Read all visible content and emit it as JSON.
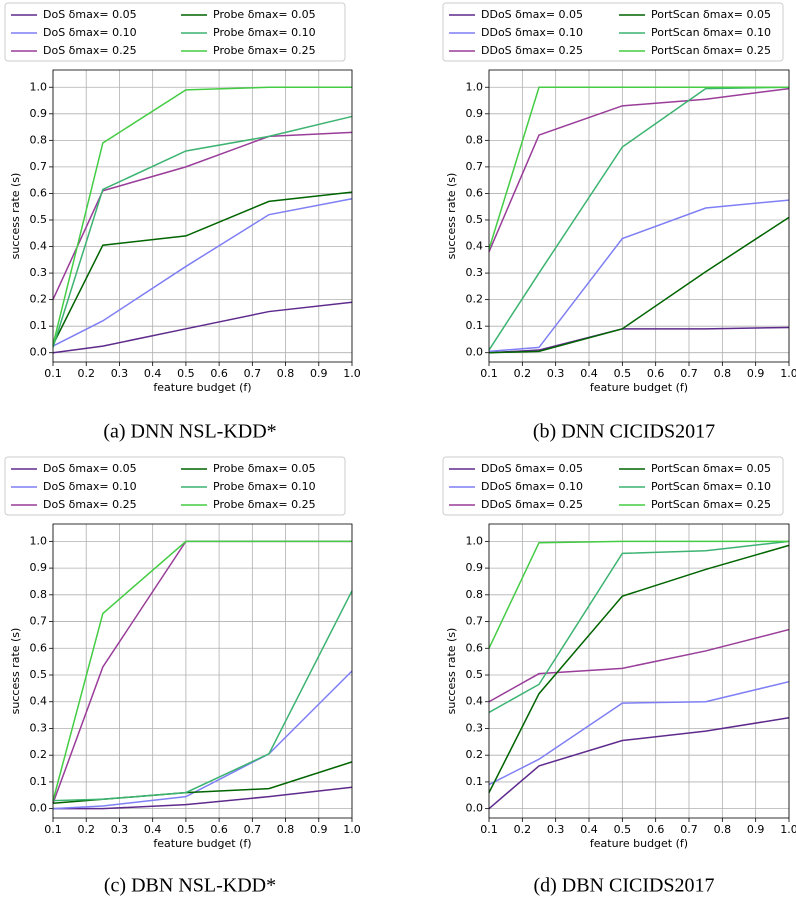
{
  "chart_data": [
    {
      "type": "line",
      "caption": "(a) DNN NSL-KDD*",
      "xlabel": "feature budget (f)",
      "ylabel": "success rate (s)",
      "x": [
        0.1,
        0.25,
        0.5,
        0.75,
        1.0
      ],
      "xlim": [
        0.1,
        1.0
      ],
      "xticks": [
        0.1,
        0.2,
        0.3,
        0.4,
        0.5,
        0.6,
        0.7,
        0.8,
        0.9,
        {
          "value": 1.0,
          "label": "1.0"
        }
      ],
      "ylim": [
        -0.035,
        1.065
      ],
      "yticks": [
        {
          "value": 0,
          "label": "0.0"
        },
        0.1,
        0.2,
        0.3,
        0.4,
        0.5,
        0.6,
        0.7,
        0.8,
        0.9,
        {
          "value": 1.0,
          "label": "1.0"
        }
      ],
      "grid": true,
      "legend_loc": "above",
      "series": [
        {
          "name": "DoS δmax= 0.05",
          "color": "#5e2a8c",
          "values": [
            0.0,
            0.025,
            0.09,
            0.155,
            0.19
          ]
        },
        {
          "name": "DoS δmax= 0.10",
          "color": "#7f7ff5",
          "values": [
            0.025,
            0.12,
            0.325,
            0.52,
            0.58
          ]
        },
        {
          "name": "DoS δmax= 0.25",
          "color": "#993d99",
          "values": [
            0.2,
            0.61,
            0.7,
            0.815,
            0.83
          ]
        },
        {
          "name": "Probe δmax= 0.05",
          "color": "#006400",
          "values": [
            0.03,
            0.405,
            0.44,
            0.57,
            0.605
          ]
        },
        {
          "name": "Probe δmax= 0.10",
          "color": "#3cb371",
          "values": [
            0.02,
            0.615,
            0.76,
            0.815,
            0.89
          ]
        },
        {
          "name": "Probe δmax= 0.25",
          "color": "#44cc44",
          "values": [
            0.03,
            0.79,
            0.99,
            1.0,
            1.0
          ]
        }
      ]
    },
    {
      "type": "line",
      "caption": "(b) DNN CICIDS2017",
      "xlabel": "feature budget (f)",
      "ylabel": "success rate (s)",
      "x": [
        0.1,
        0.25,
        0.5,
        0.75,
        1.0
      ],
      "xlim": [
        0.1,
        1.0
      ],
      "xticks": [
        0.1,
        0.2,
        0.3,
        0.4,
        0.5,
        0.6,
        0.7,
        0.8,
        0.9,
        {
          "value": 1.0,
          "label": "1.0"
        }
      ],
      "ylim": [
        -0.035,
        1.065
      ],
      "yticks": [
        {
          "value": 0,
          "label": "0.0"
        },
        0.1,
        0.2,
        0.3,
        0.4,
        0.5,
        0.6,
        0.7,
        0.8,
        0.9,
        {
          "value": 1.0,
          "label": "1.0"
        }
      ],
      "grid": true,
      "legend_loc": "above",
      "series": [
        {
          "name": "DDoS δmax= 0.05",
          "color": "#5e2a8c",
          "values": [
            0.0,
            0.01,
            0.09,
            0.09,
            0.095
          ]
        },
        {
          "name": "DDoS δmax= 0.10",
          "color": "#7f7ff5",
          "values": [
            0.005,
            0.02,
            0.43,
            0.545,
            0.575
          ]
        },
        {
          "name": "DDoS δmax= 0.25",
          "color": "#993d99",
          "values": [
            0.38,
            0.82,
            0.93,
            0.955,
            0.995
          ]
        },
        {
          "name": "PortScan δmax= 0.05",
          "color": "#006400",
          "values": [
            0.0,
            0.005,
            0.09,
            0.305,
            0.51
          ]
        },
        {
          "name": "PortScan δmax= 0.10",
          "color": "#3cb371",
          "values": [
            0.01,
            0.3,
            0.775,
            0.995,
            1.0
          ]
        },
        {
          "name": "PortScan δmax= 0.25",
          "color": "#44cc44",
          "values": [
            0.39,
            1.0,
            1.0,
            1.0,
            1.0
          ]
        }
      ]
    },
    {
      "type": "line",
      "caption": "(c) DBN NSL-KDD*",
      "xlabel": "feature budget (f)",
      "ylabel": "success rate (s)",
      "x": [
        0.1,
        0.25,
        0.5,
        0.75,
        1.0
      ],
      "xlim": [
        0.1,
        1.0
      ],
      "xticks": [
        0.1,
        0.2,
        0.3,
        0.4,
        0.5,
        0.6,
        0.7,
        0.8,
        0.9,
        {
          "value": 1.0,
          "label": "1.0"
        }
      ],
      "ylim": [
        -0.035,
        1.065
      ],
      "yticks": [
        {
          "value": 0,
          "label": "0.0"
        },
        0.1,
        0.2,
        0.3,
        0.4,
        0.5,
        0.6,
        0.7,
        0.8,
        0.9,
        {
          "value": 1.0,
          "label": "1.0"
        }
      ],
      "grid": true,
      "legend_loc": "above",
      "series": [
        {
          "name": "DoS δmax= 0.05",
          "color": "#5e2a8c",
          "values": [
            0.0,
            0.0,
            0.015,
            0.045,
            0.08
          ]
        },
        {
          "name": "DoS δmax= 0.10",
          "color": "#7f7ff5",
          "values": [
            0.0,
            0.01,
            0.045,
            0.205,
            0.515
          ]
        },
        {
          "name": "DoS δmax= 0.25",
          "color": "#993d99",
          "values": [
            0.02,
            0.53,
            1.0,
            1.0,
            1.0
          ]
        },
        {
          "name": "Probe δmax= 0.05",
          "color": "#006400",
          "values": [
            0.02,
            0.035,
            0.06,
            0.075,
            0.175
          ]
        },
        {
          "name": "Probe δmax= 0.10",
          "color": "#3cb371",
          "values": [
            0.03,
            0.035,
            0.06,
            0.205,
            0.815
          ]
        },
        {
          "name": "Probe δmax= 0.25",
          "color": "#44cc44",
          "values": [
            0.03,
            0.73,
            1.0,
            1.0,
            1.0
          ]
        }
      ]
    },
    {
      "type": "line",
      "caption": "(d) DBN CICIDS2017",
      "xlabel": "feature budget (f)",
      "ylabel": "success rate (s)",
      "x": [
        0.1,
        0.25,
        0.5,
        0.75,
        1.0
      ],
      "xlim": [
        0.1,
        1.0
      ],
      "xticks": [
        0.1,
        0.2,
        0.3,
        0.4,
        0.5,
        0.6,
        0.7,
        0.8,
        0.9,
        {
          "value": 1.0,
          "label": "1.0"
        }
      ],
      "ylim": [
        -0.035,
        1.065
      ],
      "yticks": [
        {
          "value": 0,
          "label": "0.0"
        },
        0.1,
        0.2,
        0.3,
        0.4,
        0.5,
        0.6,
        0.7,
        0.8,
        0.9,
        {
          "value": 1.0,
          "label": "1.0"
        }
      ],
      "grid": true,
      "legend_loc": "above",
      "series": [
        {
          "name": "DDoS δmax= 0.05",
          "color": "#5e2a8c",
          "values": [
            0.0,
            0.16,
            0.255,
            0.29,
            0.34
          ]
        },
        {
          "name": "DDoS δmax= 0.10",
          "color": "#7f7ff5",
          "values": [
            0.09,
            0.185,
            0.395,
            0.4,
            0.475
          ]
        },
        {
          "name": "DDoS δmax= 0.25",
          "color": "#993d99",
          "values": [
            0.4,
            0.505,
            0.525,
            0.59,
            0.67
          ]
        },
        {
          "name": "PortScan δmax= 0.05",
          "color": "#006400",
          "values": [
            0.06,
            0.43,
            0.795,
            0.895,
            0.985
          ]
        },
        {
          "name": "PortScan δmax= 0.10",
          "color": "#3cb371",
          "values": [
            0.36,
            0.465,
            0.955,
            0.965,
            1.0
          ]
        },
        {
          "name": "PortScan δmax= 0.25",
          "color": "#44cc44",
          "values": [
            0.6,
            0.995,
            1.0,
            1.0,
            1.0
          ]
        }
      ]
    }
  ]
}
